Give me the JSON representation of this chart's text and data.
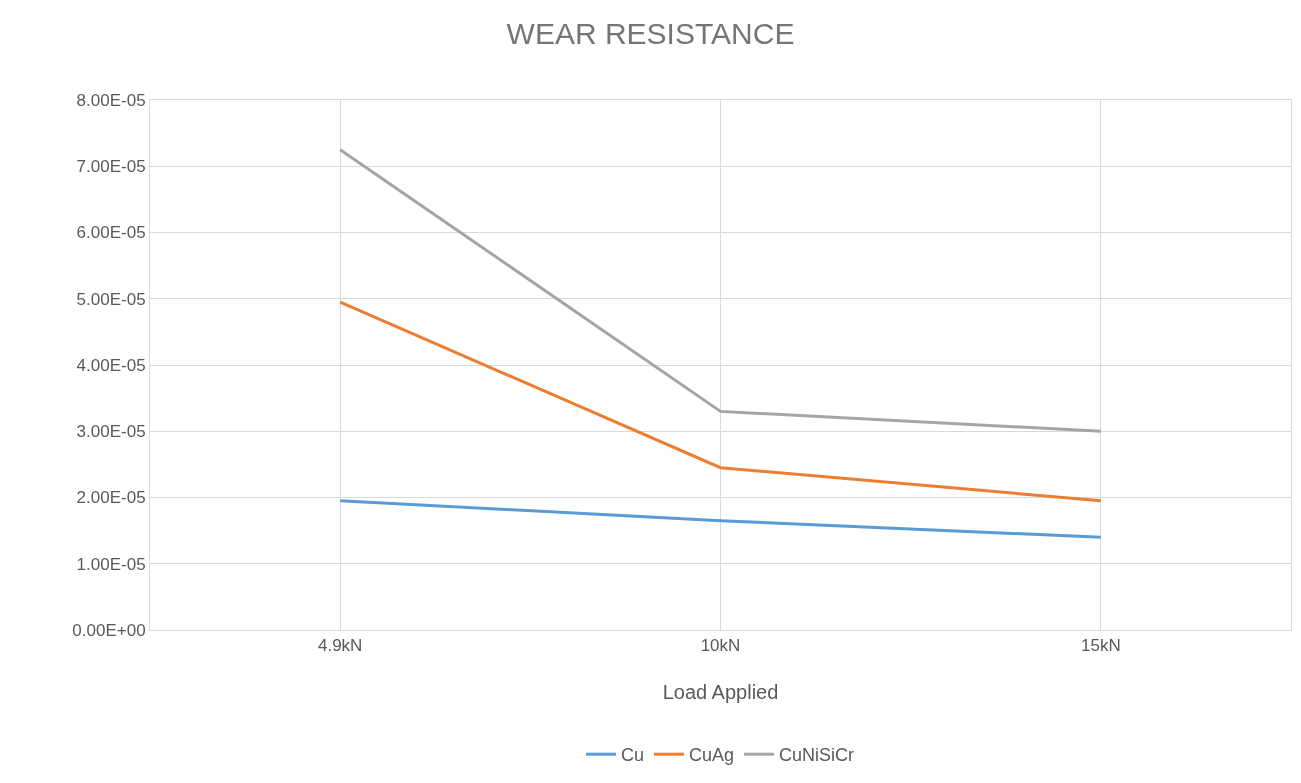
{
  "chart_data": {
    "type": "line",
    "title": "WEAR RESISTANCE",
    "xlabel": "Load Applied",
    "categories": [
      "4.9kN",
      "10kN",
      "15kN"
    ],
    "series": [
      {
        "name": "Cu",
        "color": "#5b9bd5",
        "values": [
          1.95e-05,
          1.65e-05,
          1.4e-05
        ]
      },
      {
        "name": "CuAg",
        "color": "#ed7d31",
        "values": [
          4.95e-05,
          2.45e-05,
          1.95e-05
        ]
      },
      {
        "name": "CuNiSiCr",
        "color": "#a5a5a5",
        "values": [
          7.25e-05,
          3.3e-05,
          3e-05
        ]
      }
    ],
    "ylim": [
      0,
      8e-05
    ],
    "yticks": [
      {
        "value": 0,
        "label": "0.00E+00"
      },
      {
        "value": 1e-05,
        "label": "1.00E-05"
      },
      {
        "value": 2e-05,
        "label": "2.00E-05"
      },
      {
        "value": 3e-05,
        "label": "3.00E-05"
      },
      {
        "value": 4e-05,
        "label": "4.00E-05"
      },
      {
        "value": 5e-05,
        "label": "5.00E-05"
      },
      {
        "value": 6e-05,
        "label": "6.00E-05"
      },
      {
        "value": 7e-05,
        "label": "7.00E-05"
      },
      {
        "value": 8e-05,
        "label": "8.00E-05"
      }
    ],
    "grid": true,
    "legend": "bottom",
    "marker": "none",
    "line_style": "solid"
  }
}
